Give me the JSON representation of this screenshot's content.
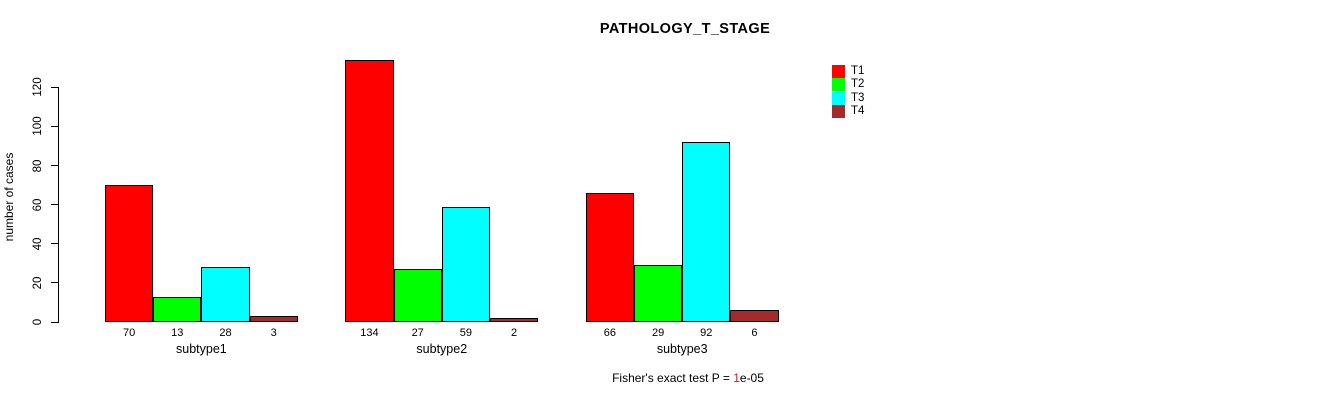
{
  "title": "PATHOLOGY_T_STAGE",
  "chart_data": {
    "type": "bar",
    "title": "PATHOLOGY_T_STAGE",
    "xlabel": "",
    "ylabel": "number of cases",
    "categories": [
      "subtype1",
      "subtype2",
      "subtype3"
    ],
    "series": [
      {
        "name": "T1",
        "color": "#FF0000",
        "values": [
          70,
          134,
          66
        ]
      },
      {
        "name": "T2",
        "color": "#00FF00",
        "values": [
          13,
          27,
          29
        ]
      },
      {
        "name": "T3",
        "color": "#00FFFF",
        "values": [
          28,
          59,
          92
        ]
      },
      {
        "name": "T4",
        "color": "#A52A2A",
        "values": [
          3,
          2,
          6
        ]
      }
    ],
    "bar_value_labels": [
      [
        70,
        13,
        28,
        3
      ],
      [
        134,
        27,
        59,
        2
      ],
      [
        66,
        29,
        92,
        6
      ]
    ],
    "yticks": [
      0,
      20,
      40,
      60,
      80,
      100,
      120
    ],
    "ylim": [
      0,
      134
    ],
    "grid": false,
    "legend_position": "top-right",
    "annotation": "Fisher's exact test P = 1e-05"
  },
  "footer": {
    "prefix": "Fisher's exact test P = ",
    "value": "1",
    "suffix": "e-05",
    "value_color": "#c42222"
  },
  "colors": {
    "axis": "#000000",
    "background": "#ffffff"
  }
}
